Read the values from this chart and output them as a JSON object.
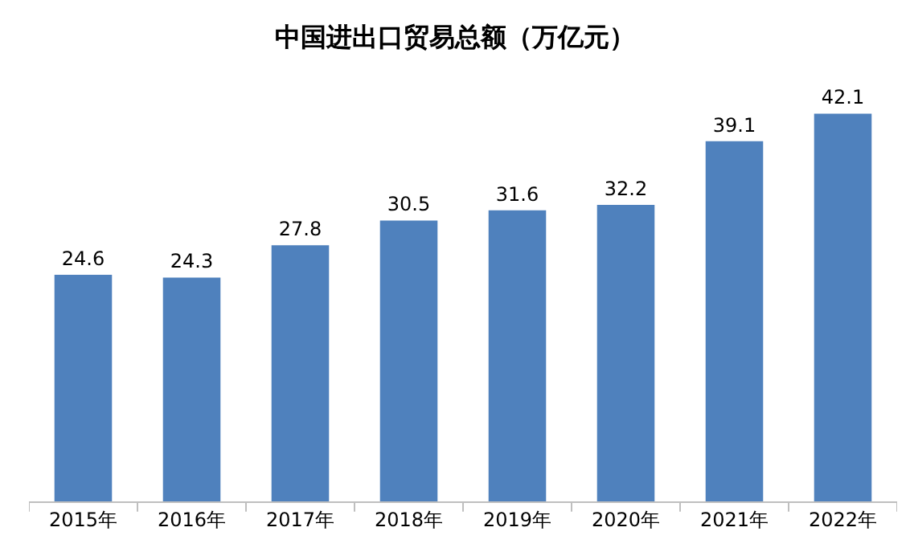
{
  "chart_data": {
    "type": "bar",
    "title": "中国进出口贸易总额（万亿元）",
    "categories": [
      "2015年",
      "2016年",
      "2017年",
      "2018年",
      "2019年",
      "2020年",
      "2021年",
      "2022年"
    ],
    "values": [
      24.6,
      24.3,
      27.8,
      30.5,
      31.6,
      32.2,
      39.1,
      42.1
    ],
    "color": "#4f81bd",
    "data_labels": true
  }
}
